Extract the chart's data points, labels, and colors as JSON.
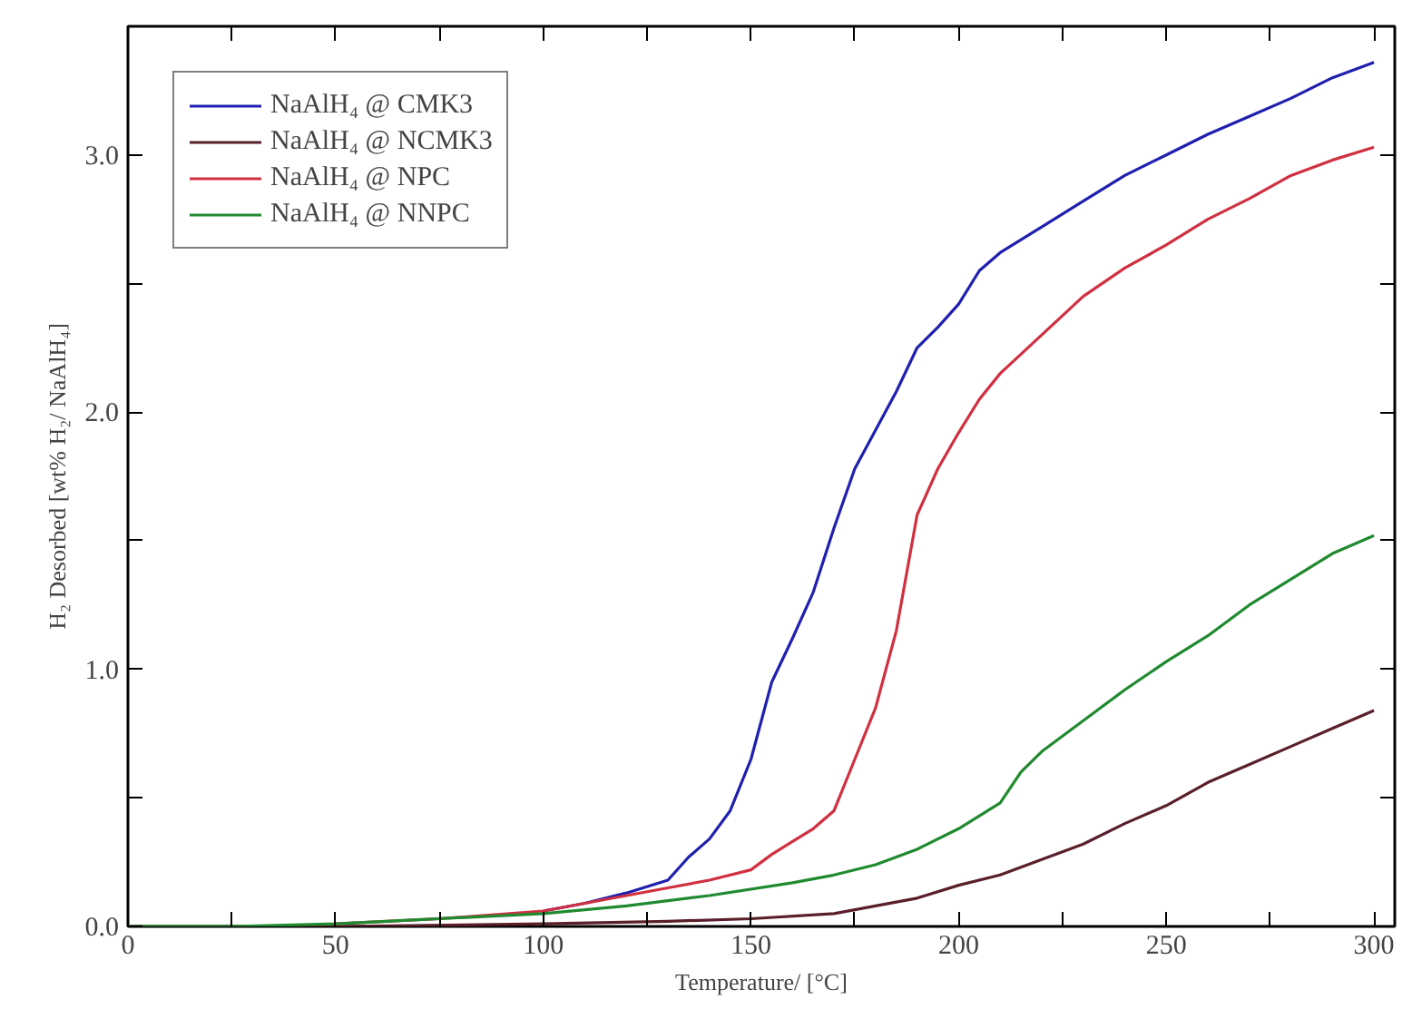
{
  "chart_data": {
    "type": "line",
    "xlabel": "Temperature/ [°C]",
    "ylabel": "H₂ Desorbed [wt% H₂/ NaAlH₄]",
    "xlim": [
      0,
      305
    ],
    "ylim": [
      0,
      3.5
    ],
    "xticks": [
      0,
      {
        "value": 25,
        "label": null
      },
      50,
      {
        "value": 75,
        "label": null
      },
      100,
      {
        "value": 125,
        "label": null
      },
      150,
      {
        "value": 175,
        "label": null
      },
      200,
      {
        "value": 225,
        "label": null
      },
      250,
      {
        "value": 275,
        "label": null
      },
      300
    ],
    "yticks": [
      "0.0",
      {
        "value": 0.5,
        "label": null
      },
      {
        "value": 1.0,
        "label": "1.0"
      },
      {
        "value": 1.5,
        "label": null
      },
      {
        "value": 2.0,
        "label": "2.0"
      },
      {
        "value": 2.5,
        "label": null
      },
      {
        "value": 3.0,
        "label": "3.0"
      }
    ],
    "grid": false,
    "legend": "top left",
    "line_style": "solid",
    "marker": "none",
    "series": [
      {
        "name": "NaAlH₄ @ CMK3",
        "color": "#2020b0",
        "x": [
          100,
          110,
          120,
          130,
          135,
          140,
          145,
          150,
          155,
          160,
          165,
          170,
          175,
          180,
          185,
          190,
          195,
          200,
          205,
          210,
          220,
          230,
          240,
          250,
          260,
          270,
          280,
          290,
          300
        ],
        "values": [
          0.06,
          0.09,
          0.13,
          0.18,
          0.27,
          0.34,
          0.45,
          0.65,
          0.95,
          1.12,
          1.3,
          1.55,
          1.78,
          1.93,
          2.08,
          2.25,
          2.33,
          2.42,
          2.55,
          2.62,
          2.72,
          2.82,
          2.92,
          3.0,
          3.08,
          3.15,
          3.22,
          3.3,
          3.36
        ]
      },
      {
        "name": "NaAlH₄ @ NCMK3",
        "color": "#5a1f2a",
        "x": [
          0,
          50,
          100,
          130,
          150,
          170,
          180,
          190,
          200,
          210,
          220,
          230,
          240,
          250,
          260,
          270,
          280,
          290,
          300
        ],
        "values": [
          0,
          0,
          0.01,
          0.02,
          0.03,
          0.05,
          0.08,
          0.11,
          0.16,
          0.2,
          0.26,
          0.32,
          0.4,
          0.47,
          0.56,
          0.63,
          0.7,
          0.77,
          0.84
        ]
      },
      {
        "name": "NaAlH₄ @ NPC",
        "color": "#d03040",
        "x": [
          50,
          75,
          100,
          120,
          130,
          140,
          150,
          155,
          160,
          165,
          170,
          175,
          180,
          185,
          190,
          195,
          200,
          205,
          210,
          220,
          230,
          240,
          250,
          260,
          270,
          280,
          290,
          300
        ],
        "values": [
          0.01,
          0.03,
          0.06,
          0.12,
          0.15,
          0.18,
          0.22,
          0.28,
          0.33,
          0.38,
          0.45,
          0.65,
          0.85,
          1.15,
          1.6,
          1.78,
          1.92,
          2.05,
          2.15,
          2.3,
          2.45,
          2.56,
          2.65,
          2.75,
          2.83,
          2.92,
          2.98,
          3.03
        ]
      },
      {
        "name": "NaAlH₄ @ NNPC",
        "color": "#208a30",
        "x": [
          0,
          25,
          50,
          100,
          120,
          140,
          160,
          170,
          180,
          190,
          200,
          210,
          215,
          220,
          230,
          240,
          250,
          260,
          270,
          280,
          290,
          300
        ],
        "values": [
          0,
          0,
          0.01,
          0.05,
          0.08,
          0.12,
          0.17,
          0.2,
          0.24,
          0.3,
          0.38,
          0.48,
          0.6,
          0.68,
          0.8,
          0.92,
          1.03,
          1.13,
          1.25,
          1.35,
          1.45,
          1.52
        ]
      }
    ]
  }
}
